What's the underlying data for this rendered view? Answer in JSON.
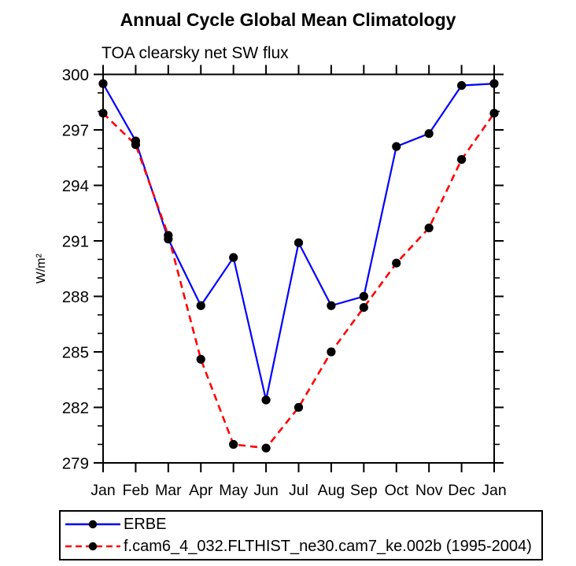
{
  "header": {
    "title": "Annual Cycle Global Mean Climatology",
    "subtitle": "TOA clearsky net SW flux"
  },
  "chart_data": {
    "type": "line",
    "categories": [
      "Jan",
      "Feb",
      "Mar",
      "Apr",
      "May",
      "Jun",
      "Jul",
      "Aug",
      "Sep",
      "Oct",
      "Nov",
      "Dec",
      "Jan"
    ],
    "series": [
      {
        "name": "ERBE",
        "color": "#0000ff",
        "line_style": "solid",
        "values": [
          299.5,
          296.4,
          291.1,
          287.5,
          290.1,
          282.4,
          290.9,
          287.5,
          288.0,
          296.1,
          296.8,
          299.4,
          299.5
        ]
      },
      {
        "name": "f.cam6_4_032.FLTHIST_ne30.cam7_ke.002b (1995-2004)",
        "color": "#ff0000",
        "line_style": "dashed",
        "values": [
          297.9,
          296.2,
          291.3,
          284.6,
          280.0,
          279.8,
          282.0,
          285.0,
          287.4,
          289.8,
          291.7,
          295.4,
          297.9
        ]
      }
    ],
    "marker": {
      "shape": "circle",
      "color": "#000000"
    },
    "xlabel": "",
    "ylabel": "W/m²",
    "ylim": [
      279,
      300
    ],
    "yticks": [
      279,
      282,
      285,
      288,
      291,
      294,
      297,
      300
    ],
    "ytick_minor_step": 1,
    "grid": false,
    "legend_position": "bottom",
    "axis_color": "#000000"
  }
}
